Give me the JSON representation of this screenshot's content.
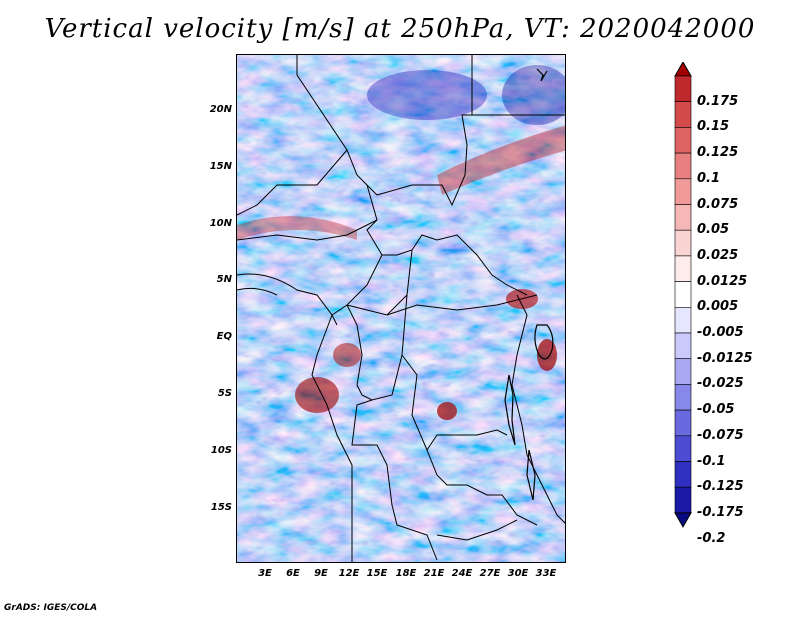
{
  "title": "Vertical velocity [m/s] at 250hPa, VT: 2020042000",
  "credit": "GrADS: IGES/COLA",
  "map": {
    "lat_labels": [
      "20N",
      "15N",
      "10N",
      "5N",
      "EQ",
      "5S",
      "10S",
      "15S"
    ],
    "lon_labels": [
      "3E",
      "6E",
      "9E",
      "12E",
      "15E",
      "18E",
      "21E",
      "24E",
      "27E",
      "30E",
      "33E"
    ]
  },
  "colorbar": {
    "labels": [
      "0.175",
      "0.15",
      "0.125",
      "0.1",
      "0.075",
      "0.05",
      "0.025",
      "0.0125",
      "0.005",
      "-0.005",
      "-0.0125",
      "-0.025",
      "-0.05",
      "-0.075",
      "-0.1",
      "-0.125",
      "-0.175",
      "-0.2"
    ],
    "colors": [
      "#a00000",
      "#c0292b",
      "#d44a4a",
      "#e06363",
      "#e98080",
      "#f09a9a",
      "#f6b7b7",
      "#fad3d3",
      "#fdecec",
      "#ffffff",
      "#e6e6ff",
      "#c9c9fb",
      "#a8a8f2",
      "#8888ea",
      "#6a6ae0",
      "#4c4cd2",
      "#3030c0",
      "#1a1aa6",
      "#0a0a80"
    ]
  }
}
